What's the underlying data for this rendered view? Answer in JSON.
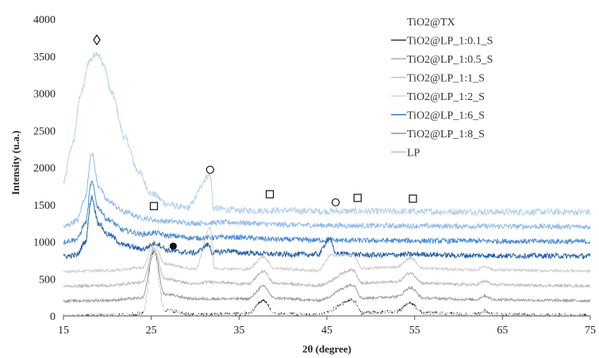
{
  "chart_data": {
    "type": "line",
    "xlabel": "2θ (degree)",
    "ylabel": "Intensity (u.a.)",
    "xlim": [
      15,
      75
    ],
    "ylim": [
      0,
      4000
    ],
    "xticks": [
      15,
      25,
      35,
      45,
      55,
      65,
      75
    ],
    "yticks": [
      0,
      500,
      1000,
      1500,
      2000,
      2500,
      3000,
      3500,
      4000
    ],
    "grid": false,
    "legend_position": "top-right",
    "series": [
      {
        "name": "TiO2@TX",
        "color": "#ffffff",
        "base": 0,
        "shape": "anatase",
        "points": [
          [
            15,
            0
          ],
          [
            20,
            5
          ],
          [
            24,
            30
          ],
          [
            25.3,
            850
          ],
          [
            26.5,
            80
          ],
          [
            30,
            10
          ],
          [
            36,
            30
          ],
          [
            37.8,
            180
          ],
          [
            39,
            30
          ],
          [
            44,
            10
          ],
          [
            48,
            200
          ],
          [
            49,
            40
          ],
          [
            53,
            60
          ],
          [
            54.5,
            150
          ],
          [
            56,
            40
          ],
          [
            62,
            20
          ],
          [
            63,
            70
          ],
          [
            64,
            20
          ],
          [
            70,
            10
          ],
          [
            75,
            5
          ]
        ]
      },
      {
        "name": "TiO2@LP_1:0.1_S",
        "color": "#1a1a1a",
        "base": 0,
        "shape": "anatase",
        "points": [
          [
            15,
            0
          ],
          [
            20,
            5
          ],
          [
            24,
            30
          ],
          [
            25.3,
            860
          ],
          [
            26.5,
            80
          ],
          [
            30,
            15
          ],
          [
            36,
            30
          ],
          [
            37.8,
            210
          ],
          [
            39,
            30
          ],
          [
            44,
            10
          ],
          [
            48,
            210
          ],
          [
            49,
            40
          ],
          [
            53,
            60
          ],
          [
            54.5,
            170
          ],
          [
            56,
            40
          ],
          [
            62,
            20
          ],
          [
            63,
            70
          ],
          [
            64,
            20
          ],
          [
            70,
            10
          ],
          [
            75,
            5
          ]
        ]
      },
      {
        "name": "TiO2@LP_1:0.5_S",
        "color": "#9a9a9a",
        "base": 200,
        "shape": "anatase",
        "points": [
          [
            15,
            200
          ],
          [
            20,
            210
          ],
          [
            24,
            240
          ],
          [
            25.3,
            880
          ],
          [
            26.5,
            290
          ],
          [
            30,
            230
          ],
          [
            36,
            230
          ],
          [
            37.8,
            400
          ],
          [
            39,
            240
          ],
          [
            44,
            210
          ],
          [
            48,
            420
          ],
          [
            49,
            240
          ],
          [
            53,
            260
          ],
          [
            54.5,
            380
          ],
          [
            56,
            240
          ],
          [
            62,
            220
          ],
          [
            63,
            270
          ],
          [
            64,
            220
          ],
          [
            70,
            210
          ],
          [
            75,
            205
          ]
        ]
      },
      {
        "name": "TiO2@LP_1:1_S",
        "color": "#b8b8b8",
        "base": 400,
        "shape": "anatase",
        "points": [
          [
            15,
            400
          ],
          [
            20,
            410
          ],
          [
            24,
            450
          ],
          [
            25.3,
            920
          ],
          [
            26.5,
            500
          ],
          [
            30,
            430
          ],
          [
            31.7,
            460
          ],
          [
            36,
            430
          ],
          [
            37.8,
            600
          ],
          [
            39,
            440
          ],
          [
            44,
            410
          ],
          [
            48,
            620
          ],
          [
            49,
            440
          ],
          [
            53,
            460
          ],
          [
            54.5,
            580
          ],
          [
            56,
            440
          ],
          [
            62,
            420
          ],
          [
            63,
            470
          ],
          [
            64,
            420
          ],
          [
            70,
            410
          ],
          [
            75,
            405
          ]
        ]
      },
      {
        "name": "TiO2@LP_1:2_S",
        "color": "#cccccc",
        "base": 600,
        "shape": "anatase",
        "points": [
          [
            15,
            600
          ],
          [
            20,
            610
          ],
          [
            24,
            650
          ],
          [
            25.3,
            1000
          ],
          [
            26.5,
            700
          ],
          [
            30,
            630
          ],
          [
            31.7,
            1200
          ],
          [
            32.2,
            640
          ],
          [
            36,
            630
          ],
          [
            37.8,
            800
          ],
          [
            39,
            640
          ],
          [
            44,
            610
          ],
          [
            45.5,
            820
          ],
          [
            48,
            820
          ],
          [
            49,
            640
          ],
          [
            53,
            660
          ],
          [
            54.5,
            780
          ],
          [
            56,
            640
          ],
          [
            62,
            620
          ],
          [
            63,
            670
          ],
          [
            64,
            620
          ],
          [
            70,
            610
          ],
          [
            75,
            605
          ]
        ]
      },
      {
        "name": "TiO2@LP_1:6_S",
        "color": "#1f5fa8",
        "base": 800,
        "shape": "lp",
        "points": [
          [
            15,
            800
          ],
          [
            16.5,
            820
          ],
          [
            17.5,
            1000
          ],
          [
            18.2,
            1600
          ],
          [
            19,
            1250
          ],
          [
            20,
            1100
          ],
          [
            22,
            950
          ],
          [
            24,
            900
          ],
          [
            25.5,
            980
          ],
          [
            27,
            880
          ],
          [
            28.5,
            860
          ],
          [
            30,
            850
          ],
          [
            31.5,
            960
          ],
          [
            32,
            850
          ],
          [
            34,
            880
          ],
          [
            35,
            850
          ],
          [
            40,
            830
          ],
          [
            44,
            830
          ],
          [
            45.3,
            1050
          ],
          [
            46,
            840
          ],
          [
            50,
            820
          ],
          [
            56,
            830
          ],
          [
            60,
            815
          ],
          [
            70,
            810
          ],
          [
            75,
            805
          ]
        ]
      },
      {
        "name": "TiO2@LP_1:8_S",
        "color": "#4a8ad4",
        "base": 1000,
        "shape": "lp",
        "points": [
          [
            15,
            1000
          ],
          [
            16.5,
            1030
          ],
          [
            17.5,
            1250
          ],
          [
            18.2,
            1800
          ],
          [
            19,
            1450
          ],
          [
            20,
            1300
          ],
          [
            22,
            1150
          ],
          [
            24,
            1100
          ],
          [
            25.5,
            1120
          ],
          [
            27,
            1080
          ],
          [
            30,
            1050
          ],
          [
            34,
            1060
          ],
          [
            40,
            1030
          ],
          [
            45,
            1020
          ],
          [
            50,
            1015
          ],
          [
            60,
            1010
          ],
          [
            70,
            1005
          ],
          [
            75,
            1000
          ]
        ]
      },
      {
        "name": "LP",
        "color": "#8fb8e8",
        "base": 1200,
        "shape": "lp",
        "points": [
          [
            15,
            1200
          ],
          [
            16.5,
            1280
          ],
          [
            17.5,
            1600
          ],
          [
            18.2,
            2200
          ],
          [
            19,
            1750
          ],
          [
            20,
            1550
          ],
          [
            22,
            1400
          ],
          [
            24,
            1320
          ],
          [
            26,
            1280
          ],
          [
            30,
            1250
          ],
          [
            34,
            1260
          ],
          [
            40,
            1230
          ],
          [
            45,
            1220
          ],
          [
            50,
            1215
          ],
          [
            60,
            1210
          ],
          [
            70,
            1205
          ],
          [
            75,
            1200
          ]
        ]
      },
      {
        "name": "",
        "color": "#b4d0ef",
        "base": 1400,
        "shape": "amorphous",
        "points": [
          [
            15,
            1800
          ],
          [
            16,
            2300
          ],
          [
            17,
            3000
          ],
          [
            18,
            3450
          ],
          [
            18.8,
            3550
          ],
          [
            19.5,
            3400
          ],
          [
            20.5,
            3000
          ],
          [
            22,
            2400
          ],
          [
            23.5,
            1950
          ],
          [
            25,
            1650
          ],
          [
            27,
            1500
          ],
          [
            29,
            1450
          ],
          [
            31.7,
            1900
          ],
          [
            32.1,
            1450
          ],
          [
            35,
            1420
          ],
          [
            40,
            1420
          ],
          [
            45,
            1410
          ],
          [
            50,
            1410
          ],
          [
            55,
            1405
          ],
          [
            60,
            1405
          ],
          [
            65,
            1400
          ],
          [
            70,
            1400
          ],
          [
            75,
            1400
          ]
        ]
      }
    ],
    "markers": [
      {
        "symbol": "diamond",
        "x": 18.8,
        "y": 3720
      },
      {
        "symbol": "square",
        "x": 25.3,
        "y": 1480
      },
      {
        "symbol": "circle-filled",
        "x": 27.5,
        "y": 940
      },
      {
        "symbol": "circle",
        "x": 31.7,
        "y": 1970
      },
      {
        "symbol": "square",
        "x": 38.5,
        "y": 1640
      },
      {
        "symbol": "circle",
        "x": 46.0,
        "y": 1530
      },
      {
        "symbol": "square",
        "x": 48.5,
        "y": 1590
      },
      {
        "symbol": "square",
        "x": 54.8,
        "y": 1580
      }
    ]
  }
}
